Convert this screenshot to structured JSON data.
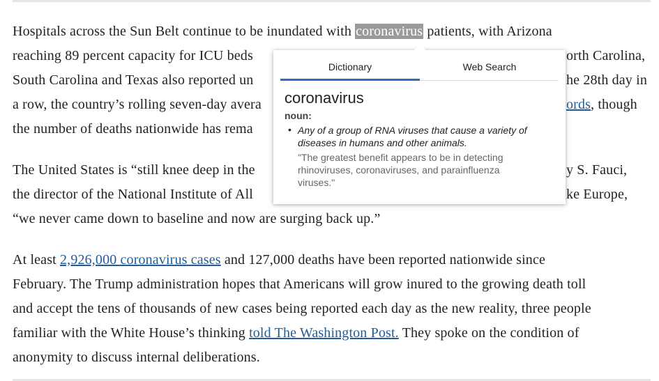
{
  "article": {
    "paragraphs": [
      {
        "lines": [
          [
            "Hospitals across the Sun Belt continue to be inundated with",
            "coronavirus",
            "patients, with Arizona"
          ],
          [
            "reaching 89 percent capacity for ICU beds",
            "orth Carolina,"
          ],
          [
            "South Carolina and Texas also reported un",
            "he 28th day in"
          ],
          [
            "a row, the country’s rolling seven-day avera",
            "ords",
            ", though"
          ],
          [
            "the number of deaths nationwide has rema"
          ]
        ]
      },
      {
        "lines": [
          [
            "The United States is “still knee deep in the",
            "y S. Fauci,"
          ],
          [
            "the director of the National Institute of All",
            "ke Europe,"
          ],
          [
            "“we never came down to baseline and now are surging back up.”"
          ]
        ]
      },
      {
        "lines": [
          [
            "At least",
            "2,926,000 coronavirus cases",
            "and 127,000 deaths have been reported nationwide since"
          ],
          [
            "February. The Trump administration hopes that Americans will grow inured to the growing death toll"
          ],
          [
            "and accept the tens of thousands of new cases being reported each day as the new reality, three people"
          ],
          [
            "familiar with the White House’s thinking",
            "told The Washington Post.",
            "They spoke on the condition of"
          ],
          [
            "anonymity to discuss internal deliberations."
          ]
        ]
      }
    ]
  },
  "popup": {
    "tabs": [
      "Dictionary",
      "Web Search"
    ],
    "word": "coronavirus",
    "part_of_speech": "noun:",
    "definition": "Any of a group of RNA viruses that cause a variety of diseases in humans and other animals.",
    "example": "\"The greatest benefit appears to be in detecting rhinoviruses, coronaviruses, and parainfluenza viruses.\""
  }
}
